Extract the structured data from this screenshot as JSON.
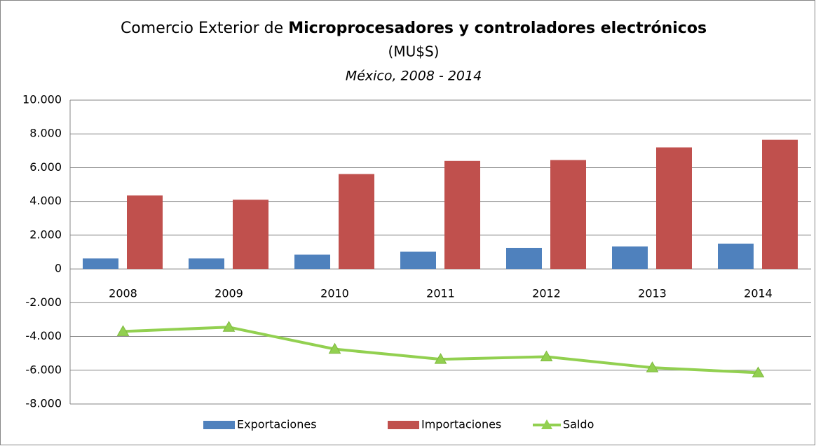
{
  "chart_data": {
    "type": "bar_line",
    "title": "Comercio Exterior de ",
    "title_bold": "Microprocesadores y controladores electrónicos",
    "unit": "(MU$S)",
    "subtitle": "México, 2008 - 2014",
    "categories": [
      "2008",
      "2009",
      "2010",
      "2011",
      "2012",
      "2013",
      "2014"
    ],
    "series": [
      {
        "name": "Exportaciones",
        "type": "bar",
        "color": "#4f81bd",
        "values": [
          620,
          620,
          850,
          1020,
          1250,
          1330,
          1500
        ]
      },
      {
        "name": "Importaciones",
        "type": "bar",
        "color": "#c0504d",
        "values": [
          4350,
          4100,
          5620,
          6400,
          6450,
          7200,
          7650
        ]
      },
      {
        "name": "Saldo",
        "type": "line",
        "color": "#92d050",
        "values": [
          -3700,
          -3450,
          -4750,
          -5350,
          -5200,
          -5850,
          -6150
        ]
      }
    ],
    "ylim": [
      -8000,
      10000
    ],
    "yticks": [
      {
        "value": -8000,
        "label": "-8.000"
      },
      {
        "value": -6000,
        "label": "-6.000"
      },
      {
        "value": -4000,
        "label": "-4.000"
      },
      {
        "value": -2000,
        "label": "-2.000"
      },
      0,
      {
        "value": 2000,
        "label": "2.000"
      },
      {
        "value": 4000,
        "label": "4.000"
      },
      {
        "value": 6000,
        "label": "6.000"
      },
      {
        "value": 8000,
        "label": "8.000"
      },
      {
        "value": 10000,
        "label": "10.000"
      }
    ],
    "grid": true,
    "legend": "bottom"
  }
}
